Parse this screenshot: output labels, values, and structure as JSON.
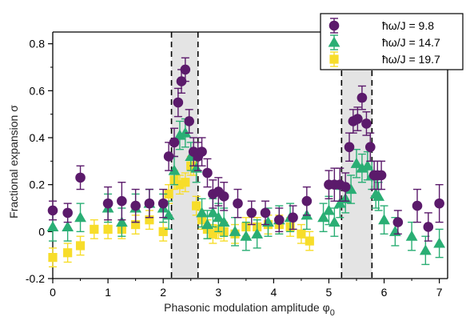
{
  "chart_data": {
    "type": "scatter",
    "xlabel": "Phasonic modulation amplitude φ",
    "xlabel_subscript": "0",
    "ylabel": "Fractional expansion σ",
    "xlim": [
      0,
      7.15
    ],
    "ylim": [
      -0.2,
      0.85
    ],
    "xticks": [
      0,
      1,
      2,
      3,
      4,
      5,
      6,
      7
    ],
    "yticks": [
      -0.2,
      0,
      0.2,
      0.4,
      0.6,
      0.8
    ],
    "xtick_labels": [
      "0",
      "1",
      "2",
      "3",
      "4",
      "5",
      "6",
      "7"
    ],
    "ytick_labels": [
      "-0.2",
      "0",
      "0.2",
      "0.4",
      "0.6",
      "0.8"
    ],
    "grid": false,
    "legend_position": "top-right",
    "shaded_regions": [
      [
        2.15,
        2.63
      ],
      [
        5.23,
        5.78
      ]
    ],
    "series": [
      {
        "name": "ħω/J = 9.8",
        "marker": "circle",
        "color": "#5b1a6b",
        "x": [
          0.0,
          0.27,
          0.5,
          1.0,
          1.25,
          1.5,
          1.75,
          2.0,
          2.1,
          2.2,
          2.27,
          2.33,
          2.4,
          2.47,
          2.55,
          2.63,
          2.7,
          2.8,
          2.9,
          3.0,
          3.1,
          3.35,
          3.6,
          3.85,
          4.1,
          4.35,
          4.6,
          5.0,
          5.1,
          5.2,
          5.3,
          5.37,
          5.44,
          5.52,
          5.6,
          5.68,
          5.75,
          5.82,
          5.88,
          5.95,
          6.25,
          6.6,
          6.8,
          7.0
        ],
        "y": [
          0.09,
          0.08,
          0.23,
          0.12,
          0.13,
          0.11,
          0.12,
          0.12,
          0.32,
          0.38,
          0.55,
          0.64,
          0.69,
          0.47,
          0.34,
          0.32,
          0.34,
          0.25,
          0.16,
          0.17,
          0.15,
          0.12,
          0.08,
          0.08,
          0.05,
          0.06,
          0.13,
          0.2,
          0.2,
          0.2,
          0.19,
          0.36,
          0.47,
          0.48,
          0.57,
          0.46,
          0.36,
          0.24,
          0.24,
          0.24,
          0.04,
          0.11,
          0.02,
          0.12
        ],
        "err": [
          0.04,
          0.04,
          0.05,
          0.07,
          0.08,
          0.07,
          0.06,
          0.06,
          0.06,
          0.06,
          0.06,
          0.05,
          0.05,
          0.05,
          0.06,
          0.06,
          0.06,
          0.06,
          0.06,
          0.06,
          0.06,
          0.06,
          0.05,
          0.05,
          0.05,
          0.05,
          0.06,
          0.06,
          0.07,
          0.07,
          0.06,
          0.06,
          0.05,
          0.05,
          0.05,
          0.05,
          0.06,
          0.06,
          0.06,
          0.06,
          0.05,
          0.07,
          0.06,
          0.08
        ]
      },
      {
        "name": "ħω/J = 14.7",
        "marker": "triangle",
        "color": "#2aae74",
        "x": [
          0.0,
          0.27,
          0.5,
          1.0,
          1.25,
          1.5,
          1.75,
          2.0,
          2.1,
          2.2,
          2.3,
          2.4,
          2.5,
          2.6,
          2.7,
          2.8,
          2.9,
          3.0,
          3.1,
          3.3,
          3.5,
          3.7,
          3.9,
          4.1,
          4.3,
          4.6,
          4.9,
          5.0,
          5.1,
          5.2,
          5.3,
          5.4,
          5.5,
          5.6,
          5.7,
          5.78,
          5.85,
          5.9,
          6.0,
          6.2,
          6.5,
          6.75,
          7.0
        ],
        "y": [
          0.02,
          0.02,
          0.06,
          0.1,
          0.04,
          0.1,
          0.12,
          0.1,
          0.07,
          0.26,
          0.41,
          0.42,
          0.32,
          0.27,
          0.08,
          0.03,
          0.08,
          0.06,
          0.04,
          0.0,
          -0.02,
          -0.01,
          0.04,
          0.05,
          0.06,
          0.07,
          0.06,
          0.09,
          0.04,
          0.12,
          0.14,
          0.18,
          0.29,
          0.27,
          0.28,
          0.24,
          0.16,
          0.15,
          0.05,
          0.0,
          -0.02,
          -0.08,
          -0.05
        ]
      },
      {
        "name": "ħω/J = 19.7",
        "marker": "square",
        "color": "#f7dd2a",
        "x": [
          0.0,
          0.27,
          0.5,
          0.75,
          1.0,
          1.25,
          1.5,
          1.75,
          2.0,
          2.1,
          2.2,
          2.3,
          2.4,
          2.5,
          2.55,
          2.6,
          2.7,
          2.8,
          2.9,
          3.0,
          3.1,
          3.3,
          3.5,
          3.7,
          3.9,
          4.1,
          4.3,
          4.5,
          4.65
        ],
        "y": [
          -0.11,
          -0.09,
          -0.06,
          0.01,
          0.01,
          0.01,
          0.03,
          0.05,
          0.0,
          0.16,
          0.22,
          0.2,
          0.21,
          0.28,
          0.28,
          0.11,
          0.05,
          0.01,
          -0.01,
          0.01,
          0.0,
          -0.01,
          0.02,
          0.02,
          0.03,
          0.03,
          0.02,
          -0.01,
          -0.04
        ]
      }
    ]
  }
}
